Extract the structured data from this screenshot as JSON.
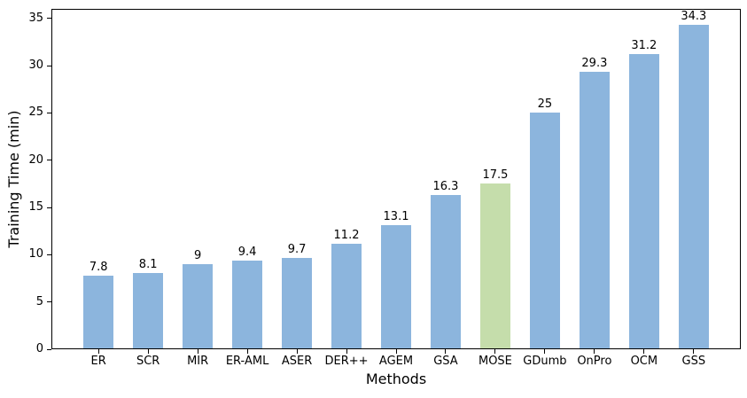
{
  "chart_data": {
    "type": "bar",
    "title": "",
    "xlabel": "Methods",
    "ylabel": "Training Time (min)",
    "categories": [
      "ER",
      "SCR",
      "MIR",
      "ER-AML",
      "ASER",
      "DER++",
      "AGEM",
      "GSA",
      "MOSE",
      "GDumb",
      "OnPro",
      "OCM",
      "GSS"
    ],
    "values": [
      7.8,
      8.1,
      9,
      9.4,
      9.7,
      11.2,
      13.1,
      16.3,
      17.5,
      25,
      29.3,
      31.2,
      34.3
    ],
    "value_labels": [
      "7.8",
      "8.1",
      "9",
      "9.4",
      "9.7",
      "11.2",
      "13.1",
      "16.3",
      "17.5",
      "25",
      "29.3",
      "31.2",
      "34.3"
    ],
    "highlight_category": "MOSE",
    "bar_color": "#8cb5dd",
    "highlight_color": "#c5ddab",
    "yticks": [
      0,
      5,
      10,
      15,
      20,
      25,
      30,
      35
    ],
    "ylim": [
      0,
      36
    ],
    "grid": false,
    "legend_position": "none"
  }
}
